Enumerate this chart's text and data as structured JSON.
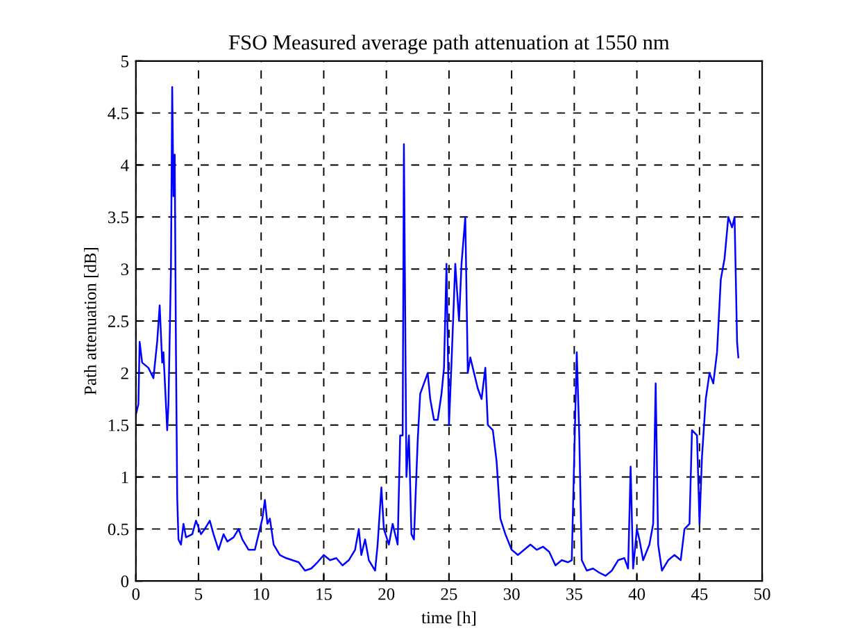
{
  "chart_data": {
    "type": "line",
    "title": "FSO Measured average path attenuation at 1550 nm",
    "xlabel": "time [h]",
    "ylabel": "Path attenuation [dB]",
    "xlim": [
      0,
      50
    ],
    "ylim": [
      0,
      5
    ],
    "xticks": [
      0,
      5,
      10,
      15,
      20,
      25,
      30,
      35,
      40,
      45,
      50
    ],
    "yticks": [
      0,
      0.5,
      1,
      1.5,
      2,
      2.5,
      3,
      3.5,
      4,
      4.5,
      5
    ],
    "grid": true,
    "legend": false,
    "series": [
      {
        "color": "#0000ff",
        "x": [
          0,
          0.2,
          0.3,
          0.5,
          1,
          1.4,
          1.7,
          1.9,
          2.1,
          2.2,
          2.5,
          2.6,
          2.8,
          2.9,
          3.0,
          3.1,
          3.2,
          3.3,
          3.4,
          3.6,
          3.8,
          4,
          4.5,
          4.8,
          5.2,
          5.5,
          5.9,
          6.2,
          6.6,
          7,
          7.3,
          7.8,
          8.2,
          8.5,
          9,
          9.5,
          9.8,
          10.1,
          10.3,
          10.5,
          10.7,
          11,
          11.5,
          12,
          12.5,
          13,
          13.5,
          14,
          14.5,
          15,
          15.5,
          16,
          16.5,
          17,
          17.5,
          17.8,
          18,
          18.3,
          18.6,
          19.1,
          19.3,
          19.6,
          19.8,
          20.2,
          20.5,
          20.9,
          21.1,
          21.3,
          21.4,
          21.6,
          21.8,
          22.0,
          22.2,
          22.5,
          22.7,
          23,
          23.3,
          23.5,
          23.8,
          24.1,
          24.4,
          24.6,
          24.8,
          25.0,
          25.2,
          25.5,
          25.8,
          26.0,
          26.3,
          26.5,
          26.7,
          27,
          27.3,
          27.6,
          27.9,
          28.1,
          28.5,
          28.8,
          29.1,
          29.5,
          30,
          30.5,
          31,
          31.5,
          32,
          32.5,
          33,
          33.5,
          34,
          34.5,
          34.8,
          35.0,
          35.2,
          35.4,
          35.6,
          36,
          36.5,
          37,
          37.5,
          38,
          38.5,
          39,
          39.3,
          39.5,
          39.7,
          40,
          40.2,
          40.5,
          41,
          41.3,
          41.5,
          41.7,
          42,
          42.5,
          43,
          43.5,
          43.8,
          44.2,
          44.4,
          44.8,
          45.0,
          45.2,
          45.5,
          45.8,
          46.1,
          46.4,
          46.7,
          47.0,
          47.3,
          47.6,
          47.8,
          48.0,
          48.1
        ],
        "values": [
          1.6,
          1.7,
          2.3,
          2.1,
          2.05,
          1.95,
          2.3,
          2.65,
          2.1,
          2.2,
          1.45,
          1.7,
          3.0,
          4.75,
          3.7,
          4.1,
          2.2,
          0.8,
          0.4,
          0.35,
          0.55,
          0.42,
          0.45,
          0.58,
          0.45,
          0.5,
          0.58,
          0.45,
          0.3,
          0.45,
          0.38,
          0.42,
          0.5,
          0.4,
          0.3,
          0.3,
          0.45,
          0.6,
          0.78,
          0.55,
          0.6,
          0.35,
          0.25,
          0.22,
          0.2,
          0.18,
          0.1,
          0.12,
          0.18,
          0.25,
          0.2,
          0.22,
          0.15,
          0.2,
          0.3,
          0.5,
          0.25,
          0.4,
          0.2,
          0.1,
          0.35,
          0.9,
          0.5,
          0.35,
          0.55,
          0.35,
          1.4,
          1.4,
          4.2,
          1.0,
          1.4,
          0.45,
          0.4,
          1.35,
          1.8,
          1.9,
          2.0,
          1.75,
          1.55,
          1.55,
          1.8,
          2.05,
          3.05,
          1.5,
          2.1,
          3.05,
          2.5,
          3.05,
          3.5,
          2.0,
          2.15,
          2.0,
          1.85,
          1.75,
          2.05,
          1.5,
          1.45,
          1.15,
          0.6,
          0.45,
          0.3,
          0.25,
          0.3,
          0.35,
          0.3,
          0.33,
          0.28,
          0.15,
          0.2,
          0.18,
          0.2,
          1.2,
          2.2,
          1.4,
          0.2,
          0.1,
          0.12,
          0.08,
          0.05,
          0.1,
          0.2,
          0.22,
          0.12,
          1.1,
          0.12,
          0.5,
          0.4,
          0.2,
          0.35,
          0.55,
          1.9,
          0.35,
          0.1,
          0.2,
          0.25,
          0.2,
          0.5,
          0.55,
          1.45,
          1.4,
          0.55,
          1.2,
          1.75,
          2.0,
          1.9,
          2.2,
          2.9,
          3.1,
          3.5,
          3.4,
          3.5,
          2.3,
          2.15
        ]
      }
    ]
  }
}
